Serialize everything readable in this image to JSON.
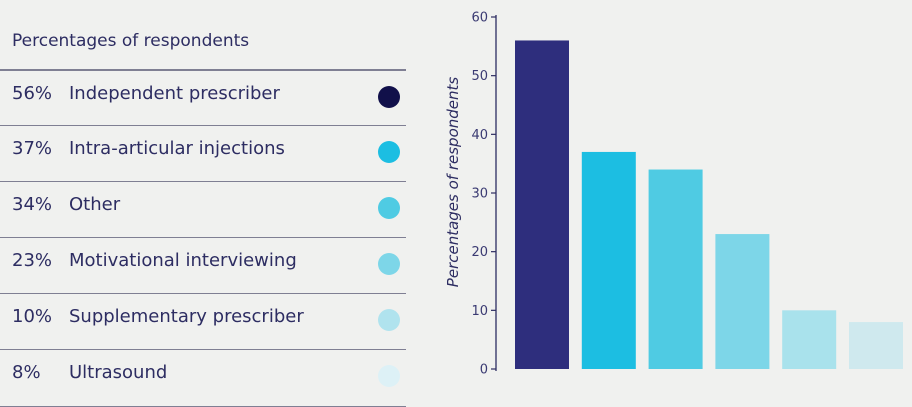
{
  "legend": {
    "title": "Percentages of respondents",
    "items": [
      {
        "pct": "56%",
        "label": "Independent prescriber",
        "color": "#11104a"
      },
      {
        "pct": "37%",
        "label": "Intra-articular injections",
        "color": "#1cbee2"
      },
      {
        "pct": "34%",
        "label": "Other",
        "color": "#4fcbe3"
      },
      {
        "pct": "23%",
        "label": "Motivational interviewing",
        "color": "#7dd6e8"
      },
      {
        "pct": "10%",
        "label": "Supplementary prescriber",
        "color": "#b0e3ee"
      },
      {
        "pct": "8%",
        "label": "Ultrasound",
        "color": "#ddf1f6"
      }
    ]
  },
  "chart_data": {
    "type": "bar",
    "categories": [
      "Independent prescriber",
      "Intra-articular injections",
      "Other",
      "Motivational interviewing",
      "Supplementary prescriber",
      "Ultrasound"
    ],
    "values": [
      56,
      37,
      34,
      23,
      10,
      8
    ],
    "colors": [
      "#2e2e7d",
      "#1cbee2",
      "#4fcbe3",
      "#7dd6e8",
      "#a9e2ec",
      "#cfe9ee"
    ],
    "ylabel": "Percentages of respondents",
    "ylim": [
      0,
      60
    ],
    "yticks": [
      0,
      10,
      20,
      30,
      40,
      50,
      60
    ],
    "grid": false,
    "axis_color": "#2d2d62"
  }
}
